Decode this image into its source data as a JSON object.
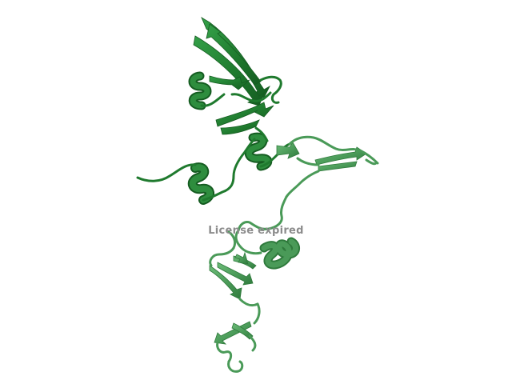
{
  "watermark": {
    "text": "License expired"
  },
  "colors": {
    "dark_green": "#1f7a2e",
    "dark_green_shade": "#155c21",
    "dark_green_light": "#34a048",
    "light_green": "#4a9a58",
    "light_green_shade": "#2f7a3c",
    "light_green_light": "#6cbc78",
    "watermark_gray": "#8c8c8c",
    "background": "#ffffff"
  }
}
